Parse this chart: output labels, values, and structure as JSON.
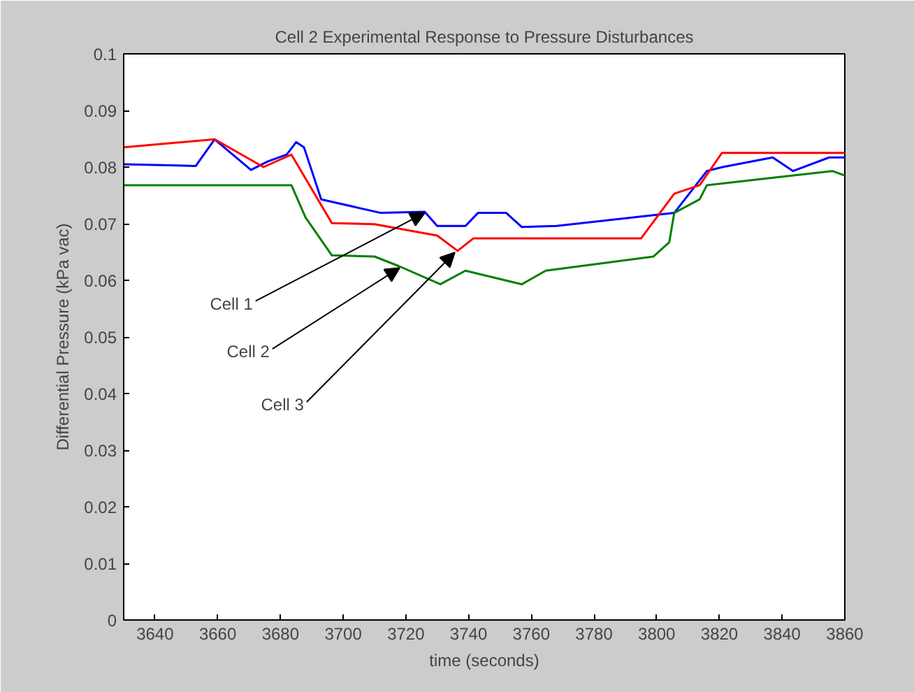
{
  "chart_data": {
    "type": "line",
    "title": "Cell 2 Experimental Response to Pressure Disturbances",
    "xlabel": "time (seconds)",
    "ylabel": "Differential Pressure (kPa vac)",
    "xlim": [
      3630,
      3860
    ],
    "ylim": [
      0,
      0.1
    ],
    "xticks": [
      3640,
      3660,
      3680,
      3700,
      3720,
      3740,
      3760,
      3780,
      3800,
      3820,
      3840,
      3860
    ],
    "yticks": [
      0,
      0.01,
      0.02,
      0.03,
      0.04,
      0.05,
      0.06,
      0.07,
      0.08,
      0.09,
      0.1
    ],
    "grid": false,
    "marker": "none",
    "line_style": "solid",
    "series": [
      {
        "color": "#0000ff",
        "x": [
          3630,
          3653,
          3659,
          3670.6,
          3676,
          3682,
          3685,
          3687.5,
          3693,
          3712,
          3726,
          3730,
          3739,
          3743,
          3752,
          3757,
          3768,
          3805.6,
          3816,
          3821,
          3837,
          3843.5,
          3855,
          3860
        ],
        "values": [
          0.0805,
          0.0802,
          0.0849,
          0.0795,
          0.081,
          0.0822,
          0.0844,
          0.0835,
          0.0743,
          0.0719,
          0.0721,
          0.0696,
          0.0696,
          0.0719,
          0.0719,
          0.0694,
          0.0696,
          0.0719,
          0.0793,
          0.08,
          0.0817,
          0.0793,
          0.0817,
          0.0817
        ]
      },
      {
        "color": "#ff0000",
        "x": [
          3630,
          3659,
          3674.6,
          3683.5,
          3696.4,
          3710,
          3730,
          3736.5,
          3741.5,
          3795,
          3805.6,
          3813.7,
          3820.8,
          3860
        ],
        "values": [
          0.0835,
          0.0849,
          0.08,
          0.0822,
          0.0701,
          0.0699,
          0.0679,
          0.0652,
          0.0674,
          0.0674,
          0.0753,
          0.0768,
          0.0825,
          0.0825
        ]
      },
      {
        "color": "#008000",
        "x": [
          3630,
          3683.5,
          3688,
          3696.4,
          3710,
          3717.8,
          3731,
          3739,
          3757,
          3764.6,
          3799,
          3804,
          3805.6,
          3813.7,
          3816,
          3856,
          3860
        ],
        "values": [
          0.0768,
          0.0768,
          0.0711,
          0.0644,
          0.0642,
          0.0625,
          0.0593,
          0.0617,
          0.0593,
          0.0617,
          0.0642,
          0.0667,
          0.0719,
          0.0743,
          0.0768,
          0.0793,
          0.0785
        ]
      }
    ],
    "annotations": [
      {
        "text": "Cell 1",
        "x": 3726,
        "y": 0.0719
      },
      {
        "text": "Cell 2",
        "x": 3718,
        "y": 0.0622
      },
      {
        "text": "Cell 3",
        "x": 3735.6,
        "y": 0.0649
      }
    ]
  }
}
